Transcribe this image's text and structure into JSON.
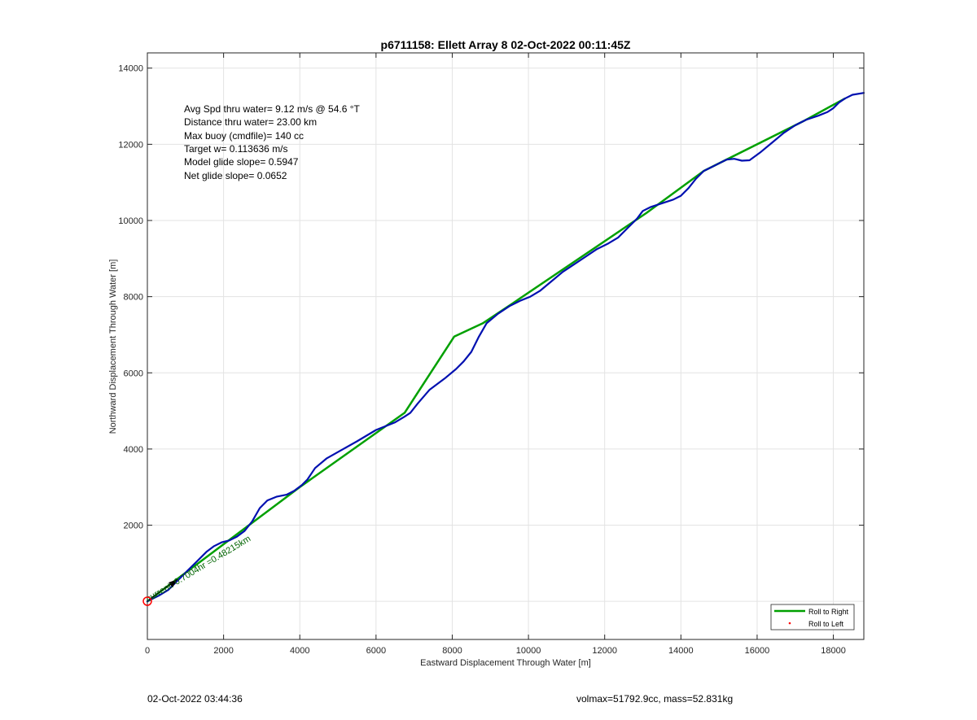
{
  "chart_data": {
    "type": "line",
    "title": "p6711158: Ellett Array 8 02-Oct-2022 00:11:45Z",
    "xlabel": "Eastward Displacement Through Water [m]",
    "ylabel": "Northward Displacement Through Water [m]",
    "xlim": [
      0,
      18800
    ],
    "ylim": [
      -1000,
      14400
    ],
    "xticks": [
      0,
      2000,
      4000,
      6000,
      8000,
      10000,
      12000,
      14000,
      16000,
      18000
    ],
    "yticks": [
      2000,
      4000,
      6000,
      8000,
      10000,
      12000,
      14000
    ],
    "grid": true,
    "legend_position": "bottom-right",
    "series": [
      {
        "name": "Roll to Right",
        "color": "#00a000",
        "style": "line",
        "x": [
          0,
          4000,
          6750,
          8050,
          8800,
          9550,
          13100,
          14600,
          17200,
          18300
        ],
        "y": [
          0,
          3000,
          4950,
          6950,
          7300,
          7800,
          10200,
          11300,
          12600,
          13200
        ]
      },
      {
        "name": "Roll to Left",
        "color": "#ff0000",
        "style": "point",
        "x": [],
        "y": []
      },
      {
        "name": "",
        "color": "#0010b0",
        "style": "line",
        "x": [
          0,
          100,
          300,
          550,
          800,
          1050,
          1300,
          1550,
          1750,
          1950,
          2150,
          2350,
          2550,
          2750,
          2950,
          3150,
          3400,
          3650,
          3850,
          4050,
          4200,
          4400,
          4700,
          5050,
          5500,
          6000,
          6500,
          6750,
          6900,
          7100,
          7400,
          7800,
          8100,
          8300,
          8500,
          8700,
          8900,
          9200,
          9500,
          9800,
          10050,
          10300,
          10600,
          10900,
          11200,
          11500,
          11800,
          12100,
          12350,
          12600,
          12850,
          13000,
          13200,
          13500,
          13800,
          14000,
          14200,
          14400,
          14600,
          14800,
          15000,
          15200,
          15400,
          15600,
          15800,
          16100,
          16400,
          16700,
          17000,
          17300,
          17600,
          17850,
          18000,
          18150,
          18300,
          18500,
          18800
        ],
        "y": [
          0,
          50,
          150,
          300,
          550,
          800,
          1050,
          1300,
          1450,
          1550,
          1600,
          1700,
          1850,
          2100,
          2450,
          2650,
          2750,
          2800,
          2900,
          3050,
          3200,
          3500,
          3750,
          3950,
          4200,
          4500,
          4700,
          4850,
          4950,
          5200,
          5550,
          5850,
          6100,
          6300,
          6550,
          6950,
          7300,
          7550,
          7750,
          7900,
          8000,
          8150,
          8400,
          8650,
          8850,
          9050,
          9250,
          9400,
          9550,
          9800,
          10050,
          10250,
          10350,
          10450,
          10550,
          10650,
          10850,
          11100,
          11300,
          11400,
          11500,
          11600,
          11620,
          11570,
          11580,
          11800,
          12050,
          12300,
          12500,
          12650,
          12750,
          12850,
          12950,
          13100,
          13200,
          13300,
          13350
        ]
      }
    ],
    "annotations": {
      "stats": [
        "Avg Spd thru water=  9.12 m/s @  54.6 °T",
        "Distance thru water= 23.00 km",
        "Max buoy (cmdfile)= 140 cc",
        "Target w= 0.113636 m/s",
        "Model glide slope= 0.5947",
        "Net glide slope= 0.0652"
      ],
      "vector_label": "current: 0.7004hr =0.48215km"
    }
  },
  "footer": {
    "timestamp": "02-Oct-2022 03:44:36",
    "volume_mass": "volmax=51792.9cc, mass=52.831kg"
  },
  "colors": {
    "roll_right": "#00a000",
    "roll_left": "#ff0000",
    "track": "#0010b0",
    "start_marker": "#ff0000"
  }
}
